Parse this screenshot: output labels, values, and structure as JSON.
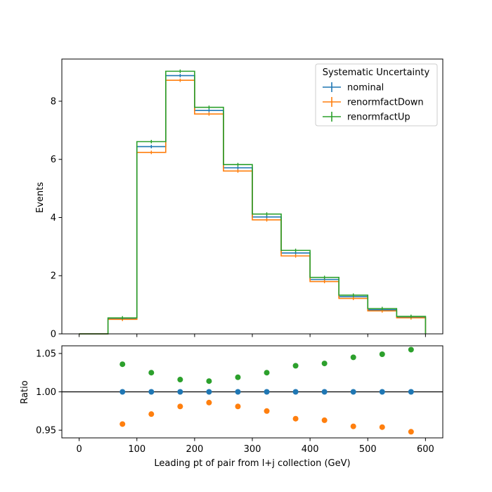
{
  "chart_data": {
    "type": "step-histogram-with-ratio",
    "main": {
      "ylabel": "Events",
      "ylim": [
        0,
        9.45
      ],
      "yticks": [
        0,
        2,
        4,
        6,
        8
      ],
      "bin_edges": [
        0,
        50,
        100,
        150,
        200,
        250,
        300,
        350,
        400,
        450,
        500,
        550,
        600
      ],
      "series": [
        {
          "name": "nominal",
          "color": "#1f77b4",
          "values": [
            0,
            0.53,
            6.44,
            8.88,
            7.68,
            5.71,
            4.02,
            2.78,
            1.87,
            1.28,
            0.83,
            0.58
          ]
        },
        {
          "name": "renormfactDown",
          "color": "#ff7f0e",
          "values": [
            0,
            0.5,
            6.24,
            8.72,
            7.56,
            5.6,
            3.92,
            2.68,
            1.8,
            1.22,
            0.79,
            0.55
          ]
        },
        {
          "name": "renormfactUp",
          "color": "#2ca02c",
          "values": [
            0,
            0.55,
            6.61,
            9.03,
            7.79,
            5.82,
            4.12,
            2.87,
            1.94,
            1.33,
            0.87,
            0.6
          ]
        }
      ],
      "legend": {
        "title": "Systematic Uncertainty",
        "entries": [
          "nominal",
          "renormfactDown",
          "renormfactUp"
        ],
        "placement": "top-right"
      }
    },
    "ratio": {
      "ylabel": "Ratio",
      "ylim": [
        0.94,
        1.06
      ],
      "yticks": [
        0.95,
        1.0,
        1.05
      ],
      "ytick_labels": [
        "0.95",
        "1.00",
        "1.05"
      ],
      "reference_line": 1.0,
      "x": [
        75,
        125,
        175,
        225,
        275,
        325,
        375,
        425,
        475,
        525,
        575
      ],
      "series": [
        {
          "name": "nominal",
          "color": "#1f77b4",
          "values": [
            1.0,
            1.0,
            1.0,
            1.0,
            1.0,
            1.0,
            1.0,
            1.0,
            1.0,
            1.0,
            1.0
          ]
        },
        {
          "name": "renormfactDown",
          "color": "#ff7f0e",
          "values": [
            0.958,
            0.971,
            0.981,
            0.986,
            0.981,
            0.975,
            0.965,
            0.963,
            0.955,
            0.954,
            0.948
          ]
        },
        {
          "name": "renormfactUp",
          "color": "#2ca02c",
          "values": [
            1.036,
            1.025,
            1.016,
            1.014,
            1.019,
            1.025,
            1.034,
            1.037,
            1.045,
            1.049,
            1.055
          ]
        }
      ]
    },
    "xlabel": "Leading pt of pair from l+j collection (GeV)",
    "xlim": [
      -30,
      630
    ],
    "xticks": [
      0,
      100,
      200,
      300,
      400,
      500,
      600
    ]
  }
}
